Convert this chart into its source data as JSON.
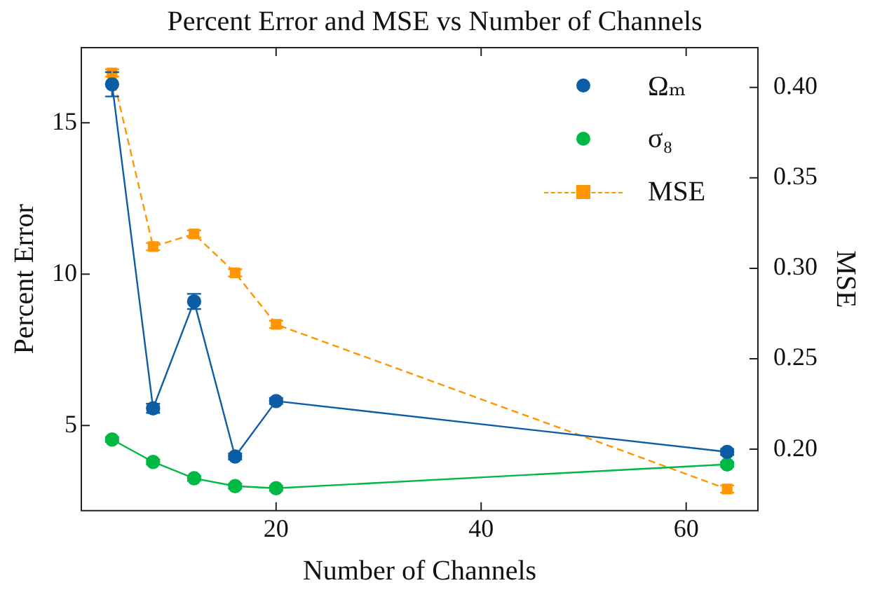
{
  "chart_data": {
    "type": "line",
    "title": "Percent Error and MSE vs Number of Channels",
    "xlabel": "Number of Channels",
    "ylabel": "Percent Error",
    "y2label": "MSE",
    "x": [
      4,
      8,
      12,
      16,
      20,
      64
    ],
    "series": [
      {
        "name": "Ωₘ",
        "color": "#0c5da5",
        "marker": "circle",
        "line_style": "solid",
        "values": [
          16.27,
          5.57,
          9.1,
          3.98,
          5.81,
          4.13
        ],
        "errors": [
          0.4,
          0.15,
          0.25,
          0.1,
          0.1,
          0.1
        ]
      },
      {
        "name": "σ₈",
        "color": "#00b945",
        "marker": "circle",
        "line_style": "solid",
        "values": [
          4.54,
          3.8,
          3.26,
          3.0,
          2.93,
          3.72
        ],
        "errors": [
          0.08,
          0.08,
          0.08,
          0.08,
          0.08,
          0.08
        ]
      },
      {
        "name": "MSE",
        "color": "#ff9500",
        "marker": "square",
        "line_style": "dashed",
        "axis": "y2",
        "values": [
          0.408,
          0.312,
          0.319,
          0.2975,
          0.269,
          0.178
        ],
        "errors": [
          0.002,
          0.002,
          0.002,
          0.002,
          0.002,
          0.002
        ]
      }
    ],
    "xlim": [
      1,
      67
    ],
    "xticks": [
      20,
      40,
      60
    ],
    "ylim": [
      2.19,
      17.48
    ],
    "yticks": [
      5,
      10,
      15
    ],
    "y2lim": [
      0.166,
      0.422
    ],
    "y2ticks": [
      {
        "value": 0.2,
        "label": "0.20"
      },
      {
        "value": 0.25,
        "label": "0.25"
      },
      {
        "value": 0.3,
        "label": "0.30"
      },
      {
        "value": 0.35,
        "label": "0.35"
      },
      {
        "value": 0.4,
        "label": "0.40"
      }
    ],
    "legend": "top right",
    "grid": false
  }
}
